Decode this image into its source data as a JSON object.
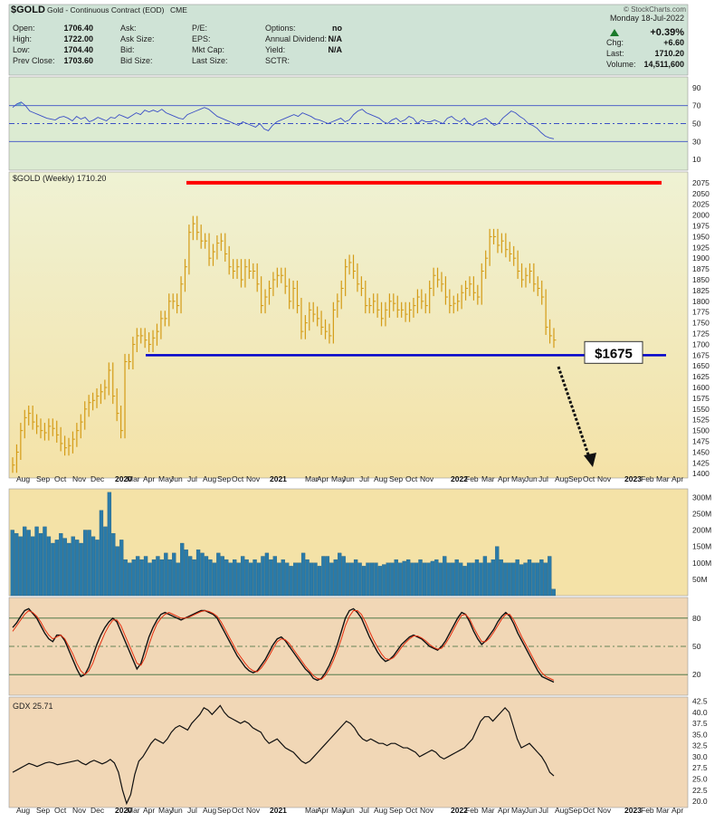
{
  "header": {
    "symbol": "$GOLD",
    "name": "Gold - Continuous Contract (EOD)",
    "exchange": "CME",
    "watermark": "© StockCharts.com",
    "date": "Monday 18-Jul-2022",
    "left_fields": [
      {
        "label": "Open:",
        "value": "1706.40"
      },
      {
        "label": "High:",
        "value": "1722.00"
      },
      {
        "label": "Low:",
        "value": "1704.40"
      },
      {
        "label": "Prev Close:",
        "value": "1703.60"
      }
    ],
    "mid_labels": [
      "Ask:",
      "Ask Size:",
      "Bid:",
      "Bid Size:"
    ],
    "fund_fields": [
      {
        "label": "P/E:",
        "value": ""
      },
      {
        "label": "EPS:",
        "value": ""
      },
      {
        "label": "Mkt Cap:",
        "value": ""
      },
      {
        "label": "Last Size:",
        "value": ""
      }
    ],
    "opt_fields": [
      {
        "label": "Options:",
        "value": "no"
      },
      {
        "label": "Annual Dividend:",
        "value": "N/A"
      },
      {
        "label": "Yield:",
        "value": "N/A"
      },
      {
        "label": "SCTR:",
        "value": ""
      }
    ],
    "change_pct": "+0.39%",
    "right_fields": [
      {
        "label": "Chg:",
        "value": "+6.60"
      },
      {
        "label": "Last:",
        "value": "1710.20"
      },
      {
        "label": "Volume:",
        "value": "14,511,600"
      }
    ]
  },
  "colors": {
    "header_bg": "#cfe3d6",
    "rsi_bg": "#dcebd2",
    "price_bg_top": "#eff2d4",
    "price_bg_bottom": "#f4e2a7",
    "lower_bg": "#f1d7b6",
    "bar": "#d49b16",
    "resistance": "#ff0000",
    "support": "#0000cc",
    "volume": "#2a7aa8",
    "rsi_line": "#3b4fc6",
    "stoch_signal": "#e53010"
  },
  "chart_data": [
    {
      "type": "line",
      "panel": "rsi",
      "title": "",
      "ylim": [
        0,
        100
      ],
      "y_ticks": [
        10,
        30,
        50,
        70,
        90
      ],
      "reference_lines": [
        30,
        50,
        70
      ],
      "values": [
        68,
        72,
        74,
        70,
        64,
        62,
        60,
        58,
        56,
        55,
        54,
        57,
        58,
        56,
        53,
        58,
        55,
        57,
        52,
        54,
        57,
        55,
        53,
        57,
        56,
        60,
        58,
        56,
        59,
        62,
        60,
        65,
        63,
        65,
        63,
        66,
        62,
        60,
        58,
        56,
        55,
        60,
        62,
        64,
        66,
        68,
        66,
        62,
        58,
        56,
        54,
        52,
        50,
        48,
        52,
        50,
        48,
        46,
        50,
        44,
        42,
        48,
        52,
        54,
        56,
        58,
        60,
        58,
        62,
        60,
        58,
        55,
        54,
        52,
        50,
        52,
        54,
        56,
        52,
        54,
        60,
        64,
        66,
        62,
        60,
        58,
        56,
        52,
        50,
        54,
        56,
        52,
        54,
        58,
        56,
        50,
        54,
        52,
        52,
        54,
        52,
        50,
        56,
        58,
        54,
        52,
        56,
        50,
        48,
        52,
        54,
        56,
        52,
        48,
        50,
        56,
        60,
        64,
        62,
        58,
        55,
        50,
        48,
        45,
        40,
        36,
        34,
        33
      ],
      "current": 33
    },
    {
      "type": "bar",
      "panel": "price",
      "title": "$GOLD (Weekly) 1710.20",
      "ylim": [
        1390,
        2100
      ],
      "y_ticks": [
        1400,
        1425,
        1450,
        1475,
        1500,
        1525,
        1550,
        1575,
        1600,
        1625,
        1650,
        1675,
        1700,
        1725,
        1750,
        1775,
        1800,
        1825,
        1850,
        1875,
        1900,
        1925,
        1950,
        1975,
        2000,
        2025,
        2050,
        2075
      ],
      "x_labels": [
        "Aug",
        "Sep",
        "Oct",
        "Nov",
        "Dec",
        "2020",
        "Mar",
        "Apr",
        "May",
        "Jun",
        "Jul",
        "Aug",
        "Sep",
        "Oct",
        "Nov",
        "2021",
        "Mar",
        "Apr",
        "May",
        "Jun",
        "Jul",
        "Aug",
        "Sep",
        "Oct",
        "Nov",
        "2022",
        "Feb",
        "Mar",
        "Apr",
        "May",
        "Jun",
        "Jul",
        "Aug",
        "Sep",
        "Oct",
        "Nov",
        "2023",
        "Feb",
        "Mar",
        "Apr"
      ],
      "values": [
        1420,
        1450,
        1500,
        1530,
        1540,
        1520,
        1510,
        1500,
        1495,
        1510,
        1505,
        1490,
        1470,
        1460,
        1465,
        1480,
        1500,
        1520,
        1550,
        1565,
        1570,
        1580,
        1590,
        1600,
        1640,
        1580,
        1540,
        1500,
        1660,
        1660,
        1700,
        1720,
        1720,
        1710,
        1700,
        1715,
        1730,
        1760,
        1760,
        1800,
        1800,
        1790,
        1840,
        1880,
        1960,
        1980,
        1960,
        1940,
        1940,
        1900,
        1915,
        1935,
        1940,
        1910,
        1880,
        1870,
        1880,
        1850,
        1880,
        1870,
        1870,
        1840,
        1790,
        1810,
        1830,
        1850,
        1860,
        1860,
        1835,
        1800,
        1830,
        1790,
        1730,
        1750,
        1780,
        1770,
        1760,
        1740,
        1730,
        1720,
        1780,
        1800,
        1830,
        1880,
        1890,
        1870,
        1840,
        1830,
        1790,
        1790,
        1800,
        1780,
        1760,
        1780,
        1800,
        1795,
        1780,
        1780,
        1770,
        1780,
        1790,
        1810,
        1800,
        1790,
        1830,
        1860,
        1850,
        1840,
        1810,
        1790,
        1795,
        1800,
        1820,
        1830,
        1840,
        1820,
        1810,
        1870,
        1900,
        1950,
        1950,
        1930,
        1940,
        1920,
        1910,
        1900,
        1870,
        1850,
        1860,
        1870,
        1840,
        1830,
        1810,
        1740,
        1720,
        1710
      ],
      "annotations": {
        "resistance": 2075,
        "support": 1675,
        "support_label": "$1675"
      }
    },
    {
      "type": "bar",
      "panel": "volume",
      "ylim": [
        0,
        320
      ],
      "y_ticks_labels": [
        "50M",
        "100M",
        "150M",
        "200M",
        "250M",
        "300M"
      ],
      "y_ticks": [
        50,
        100,
        150,
        200,
        250,
        300
      ],
      "values": [
        200,
        190,
        180,
        210,
        200,
        180,
        210,
        190,
        210,
        180,
        160,
        170,
        190,
        175,
        160,
        180,
        170,
        160,
        200,
        200,
        180,
        170,
        260,
        210,
        315,
        190,
        150,
        170,
        110,
        100,
        110,
        120,
        110,
        120,
        100,
        110,
        120,
        110,
        130,
        110,
        130,
        100,
        160,
        140,
        120,
        110,
        140,
        130,
        120,
        110,
        100,
        130,
        120,
        110,
        100,
        110,
        100,
        120,
        110,
        100,
        110,
        100,
        120,
        130,
        110,
        120,
        100,
        110,
        100,
        90,
        100,
        100,
        130,
        110,
        100,
        100,
        90,
        120,
        120,
        100,
        110,
        130,
        120,
        100,
        100,
        110,
        100,
        90,
        100,
        100,
        100,
        90,
        95,
        100,
        100,
        110,
        100,
        105,
        110,
        100,
        100,
        110,
        100,
        100,
        105,
        110,
        100,
        120,
        100,
        100,
        110,
        100,
        90,
        100,
        100,
        110,
        100,
        120,
        100,
        110,
        150,
        110,
        100,
        100,
        100,
        110,
        95,
        100,
        110,
        100,
        100,
        110,
        100,
        120,
        20
      ]
    },
    {
      "type": "line",
      "panel": "stochastics",
      "ylim": [
        0,
        100
      ],
      "y_ticks": [
        20,
        50,
        80
      ],
      "reference_lines": [
        20,
        50,
        80
      ],
      "series": [
        {
          "values": [
            70,
            75,
            82,
            88,
            90,
            85,
            80,
            72,
            64,
            58,
            55,
            62,
            62,
            56,
            46,
            36,
            26,
            18,
            20,
            28,
            40,
            52,
            62,
            70,
            76,
            80,
            76,
            66,
            56,
            46,
            36,
            26,
            32,
            46,
            60,
            70,
            78,
            84,
            86,
            84,
            82,
            80,
            78,
            80,
            82,
            84,
            86,
            88,
            88,
            86,
            84,
            80,
            72,
            64,
            56,
            48,
            40,
            34,
            28,
            24,
            22,
            24,
            30,
            36,
            44,
            52,
            58,
            60,
            56,
            50,
            44,
            38,
            32,
            26,
            22,
            16,
            14,
            16,
            22,
            30,
            40,
            52,
            66,
            80,
            88,
            90,
            86,
            80,
            70,
            60,
            52,
            44,
            38,
            34,
            36,
            40,
            46,
            52,
            56,
            60,
            62,
            60,
            58,
            54,
            50,
            48,
            46,
            50,
            56,
            64,
            72,
            80,
            86,
            84,
            76,
            66,
            58,
            52,
            56,
            62,
            68,
            76,
            82,
            86,
            82,
            74,
            64,
            56,
            48,
            40,
            32,
            24,
            18,
            16,
            14,
            12
          ]
        },
        {
          "values": [
            66,
            72,
            78,
            84,
            88,
            86,
            82,
            76,
            68,
            62,
            58,
            60,
            62,
            58,
            50,
            42,
            32,
            24,
            20,
            24,
            32,
            44,
            54,
            64,
            72,
            78,
            78,
            72,
            62,
            52,
            42,
            32,
            30,
            38,
            52,
            64,
            74,
            80,
            84,
            86,
            84,
            82,
            80,
            80,
            81,
            83,
            85,
            87,
            88,
            87,
            85,
            82,
            76,
            68,
            60,
            52,
            44,
            38,
            32,
            27,
            24,
            23,
            27,
            33,
            40,
            48,
            55,
            58,
            57,
            53,
            47,
            41,
            35,
            29,
            24,
            19,
            16,
            15,
            19,
            26,
            35,
            46,
            58,
            72,
            82,
            88,
            88,
            84,
            76,
            66,
            57,
            49,
            42,
            37,
            36,
            38,
            43,
            49,
            54,
            58,
            61,
            61,
            59,
            56,
            52,
            49,
            47,
            48,
            53,
            60,
            68,
            76,
            83,
            84,
            79,
            70,
            62,
            55,
            55,
            59,
            65,
            72,
            79,
            84,
            84,
            78,
            69,
            60,
            52,
            44,
            36,
            28,
            22,
            18,
            16,
            14
          ]
        }
      ]
    },
    {
      "type": "line",
      "panel": "gdx",
      "title": "GDX 25.71",
      "ylim": [
        19,
        43
      ],
      "y_ticks": [
        20.0,
        22.5,
        25.0,
        27.5,
        30.0,
        32.5,
        35.0,
        37.5,
        40.0,
        42.5
      ],
      "values": [
        26.5,
        27,
        27.5,
        28,
        28.5,
        28.2,
        27.8,
        28.2,
        28.6,
        28.8,
        28.6,
        28.2,
        28.4,
        28.6,
        28.8,
        29,
        29.2,
        28.6,
        28.2,
        28.8,
        29.2,
        28.8,
        28.4,
        28.8,
        29.4,
        28.6,
        26.5,
        22.5,
        19.5,
        21.5,
        26,
        29,
        30,
        31.5,
        33,
        34,
        33.5,
        33,
        34,
        35.5,
        36.5,
        37,
        36.5,
        36,
        37.5,
        38.5,
        39.5,
        41,
        40.5,
        39.5,
        40.5,
        41.5,
        40,
        39,
        38.5,
        38,
        37.5,
        38,
        37.5,
        36.5,
        36,
        35.5,
        34,
        33,
        33.5,
        34,
        33,
        32,
        31.5,
        31,
        30,
        29,
        28.5,
        29,
        30,
        31,
        32,
        33,
        34,
        35,
        36,
        37,
        38,
        37.5,
        36.5,
        35,
        34,
        33.5,
        34,
        33.5,
        33,
        33,
        32.5,
        33,
        33,
        32.5,
        32,
        32,
        31.5,
        31,
        30,
        30.5,
        31,
        31.5,
        31,
        30,
        29.5,
        30,
        30.5,
        31,
        31.5,
        32,
        33,
        34,
        36,
        38,
        39,
        39,
        38,
        39,
        40,
        41,
        40,
        37,
        34,
        32,
        32.5,
        33,
        32,
        31,
        30,
        28.5,
        26.5,
        25.7
      ]
    }
  ]
}
